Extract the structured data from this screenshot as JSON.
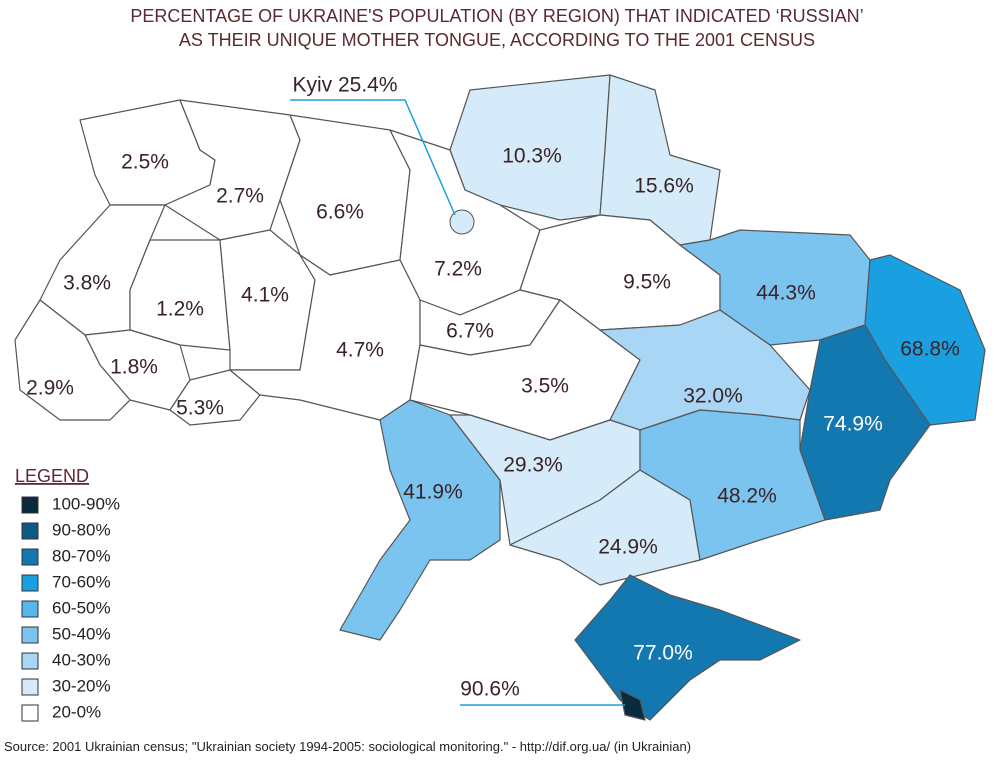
{
  "title": [
    "PERCENTAGE OF UKRAINE'S POPULATION (BY REGION) THAT INDICATED ‘RUSSIAN’",
    "AS THEIR UNIQUE MOTHER TONGUE, ACCORDING TO THE 2001 CENSUS"
  ],
  "regions": [
    "2.5%",
    "2.7%",
    "6.6%",
    "10.3%",
    "15.6%",
    "3.8%",
    "1.2%",
    "4.1%",
    "7.2%",
    "9.5%",
    "44.3%",
    "68.8%",
    "74.9%",
    "1.8%",
    "2.9%",
    "5.3%",
    "4.7%",
    "6.7%",
    "3.5%",
    "32.0%",
    "41.9%",
    "29.3%",
    "24.9%",
    "48.2%",
    "77.0%"
  ],
  "callouts": [
    "Kyiv 25.4%",
    "90.6%"
  ],
  "legend": {
    "title": "LEGEND",
    "items": [
      "100-90%",
      "90-80%",
      "80-70%",
      "70-60%",
      "60-50%",
      "50-40%",
      "40-30%",
      "30-20%",
      "20-0%"
    ]
  },
  "source": "Source:  2001 Ukrainian census; \"Ukrainian society 1994-2005: sociological monitoring.\" - http://dif.org.ua/ (in Ukrainian)"
}
